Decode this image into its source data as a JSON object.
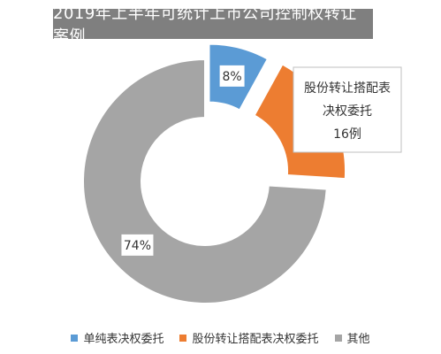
{
  "chart_data": {
    "type": "pie",
    "variant": "donut",
    "title": "2019年上半年可统计上市公司控制权转让案例",
    "categories": [
      "单纯表决权委托",
      "股份转让搭配表决权委托",
      "其他"
    ],
    "values": [
      8,
      18,
      74
    ],
    "colors": [
      "#5b9bd5",
      "#ed7d31",
      "#a5a5a5"
    ],
    "data_labels": [
      "8%",
      "",
      "74%"
    ],
    "callout": {
      "lines": [
        "股份转让搭配表",
        "决权委托",
        "16例"
      ]
    },
    "legend_position": "bottom"
  }
}
